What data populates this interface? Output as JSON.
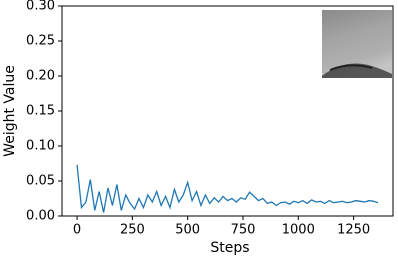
{
  "chart_data": {
    "type": "line",
    "x_label": "Steps",
    "y_label": "Weight Value",
    "x": [
      0,
      20,
      40,
      60,
      80,
      100,
      120,
      140,
      160,
      180,
      200,
      220,
      240,
      260,
      280,
      300,
      320,
      340,
      360,
      380,
      400,
      420,
      440,
      460,
      480,
      500,
      520,
      540,
      560,
      580,
      600,
      620,
      640,
      660,
      680,
      700,
      720,
      740,
      760,
      780,
      800,
      820,
      840,
      860,
      880,
      900,
      920,
      940,
      960,
      980,
      1000,
      1020,
      1040,
      1060,
      1080,
      1100,
      1120,
      1140,
      1160,
      1180,
      1200,
      1220,
      1240,
      1260,
      1280,
      1300,
      1320,
      1340,
      1360
    ],
    "values": [
      0.073,
      0.012,
      0.02,
      0.052,
      0.008,
      0.035,
      0.005,
      0.04,
      0.015,
      0.045,
      0.008,
      0.03,
      0.018,
      0.01,
      0.025,
      0.012,
      0.03,
      0.02,
      0.035,
      0.015,
      0.028,
      0.012,
      0.038,
      0.02,
      0.03,
      0.048,
      0.022,
      0.035,
      0.015,
      0.03,
      0.018,
      0.026,
      0.02,
      0.028,
      0.022,
      0.025,
      0.02,
      0.026,
      0.024,
      0.034,
      0.028,
      0.022,
      0.025,
      0.018,
      0.02,
      0.015,
      0.019,
      0.02,
      0.017,
      0.021,
      0.019,
      0.022,
      0.018,
      0.023,
      0.02,
      0.021,
      0.018,
      0.022,
      0.019,
      0.02,
      0.021,
      0.019,
      0.02,
      0.022,
      0.021,
      0.02,
      0.022,
      0.021,
      0.019
    ],
    "color": "#1f77b4",
    "xlim": [
      -68,
      1428
    ],
    "ylim": [
      0,
      0.3
    ],
    "xticks": [
      0,
      250,
      500,
      750,
      1000,
      1250
    ],
    "yticks": [
      {
        "value": 0,
        "label": "0.00"
      },
      {
        "value": 0.05,
        "label": "0.05"
      },
      {
        "value": 0.1,
        "label": "0.10"
      },
      {
        "value": 0.15,
        "label": "0.15"
      },
      {
        "value": 0.2,
        "label": "0.20"
      },
      {
        "value": 0.25,
        "label": "0.25"
      },
      {
        "value": 0.3,
        "label": "0.30"
      }
    ]
  }
}
